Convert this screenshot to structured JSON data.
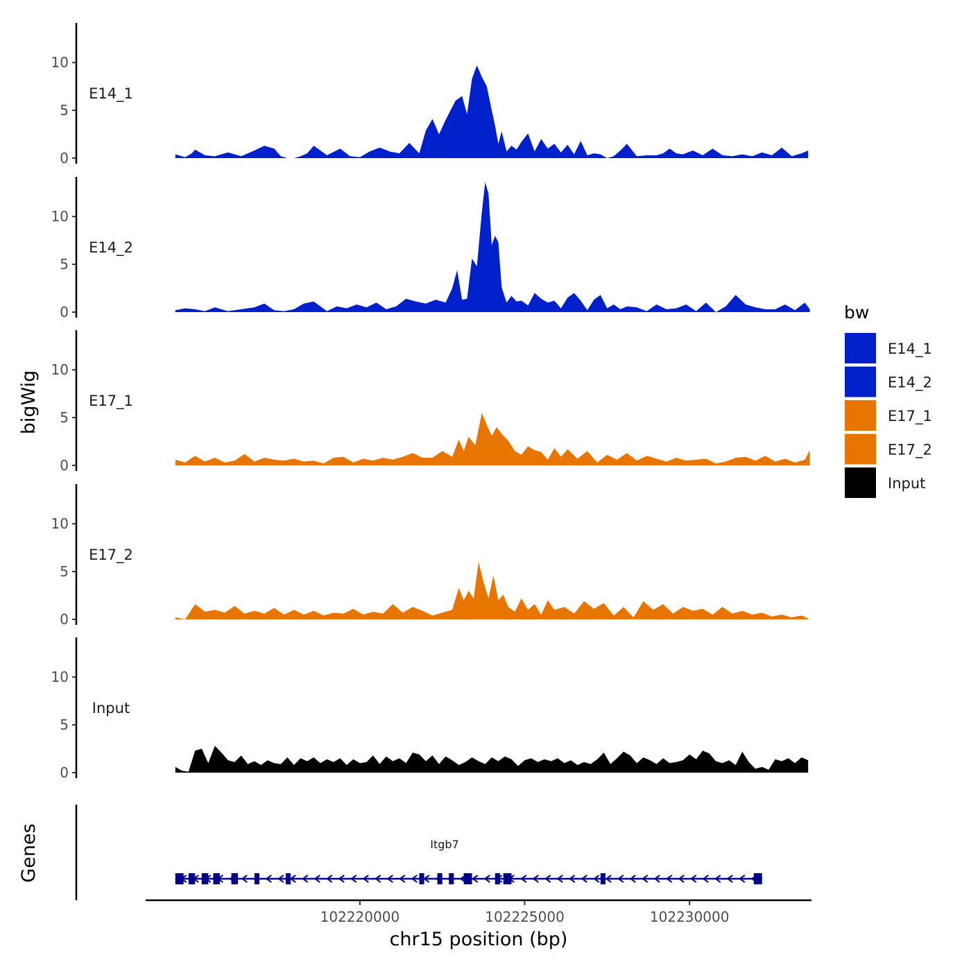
{
  "chart_data": {
    "type": "area",
    "xlabel": "chr15 position (bp)",
    "ylabel": "bigWig",
    "genes_label": "Genes",
    "xlim": [
      102213500,
      102233700
    ],
    "xticks": [
      102220000,
      102225000,
      102230000
    ],
    "xtick_labels": [
      "102220000",
      "102225000",
      "102230000"
    ],
    "ylim": [
      0,
      14
    ],
    "yticks": [
      0,
      5,
      10
    ],
    "ytick_labels": [
      "0",
      "5",
      "10"
    ],
    "legend": {
      "title": "bw",
      "entries": [
        {
          "label": "E14_1",
          "color": "#0020CC"
        },
        {
          "label": "E14_2",
          "color": "#0020CC"
        },
        {
          "label": "E17_1",
          "color": "#E87500"
        },
        {
          "label": "E17_2",
          "color": "#E87500"
        },
        {
          "label": "Input",
          "color": "#000000"
        }
      ]
    },
    "series": [
      {
        "name": "E14_1",
        "color": "#0020CC",
        "x": [
          102214400,
          102214700,
          102214900,
          102215000,
          102215300,
          102215600,
          102216000,
          102216400,
          102216600,
          102216800,
          102217100,
          102217400,
          102217600,
          102217800,
          102218000,
          102218200,
          102218400,
          102218600,
          102219000,
          102219400,
          102219700,
          102220000,
          102220300,
          102220600,
          102220900,
          102221200,
          102221500,
          102221800,
          102222000,
          102222200,
          102222400,
          102222600,
          102222900,
          102223100,
          102223250,
          102223400,
          102223550,
          102223700,
          102223850,
          102224000,
          102224100,
          102224200,
          102224300,
          102224450,
          102224600,
          102224750,
          102224900,
          102225100,
          102225300,
          102225500,
          102225700,
          102225900,
          102226100,
          102226300,
          102226500,
          102226700,
          102226900,
          102227100,
          102227300,
          102227500,
          102227700,
          102227900,
          102228100,
          102228400,
          102228700,
          102229000,
          102229200,
          102229400,
          102229600,
          102229800,
          102230100,
          102230400,
          102230700,
          102231000,
          102231300,
          102231600,
          102231900,
          102232200,
          102232500,
          102232800,
          102233100,
          102233400,
          102233600
        ],
        "y": [
          0.4,
          0.1,
          0.5,
          0.9,
          0.3,
          0.2,
          0.6,
          0.2,
          0.5,
          0.8,
          1.3,
          1.0,
          0.2,
          0.0,
          0.0,
          0.2,
          0.5,
          1.3,
          0.3,
          1.0,
          0.2,
          0.1,
          0.7,
          1.1,
          0.7,
          0.5,
          1.6,
          0.5,
          2.9,
          4.1,
          2.5,
          4.0,
          6.0,
          6.5,
          4.6,
          8.3,
          9.7,
          8.5,
          7.5,
          5.0,
          3.4,
          1.5,
          2.8,
          0.7,
          1.3,
          0.9,
          1.7,
          2.6,
          0.7,
          2.0,
          1.0,
          1.5,
          0.6,
          1.4,
          0.4,
          1.8,
          0.3,
          0.5,
          0.4,
          0.0,
          0.2,
          0.8,
          1.5,
          0.2,
          0.3,
          0.3,
          0.5,
          1.0,
          0.5,
          0.4,
          0.8,
          0.3,
          1.0,
          0.3,
          0.2,
          0.4,
          0.2,
          0.6,
          0.3,
          1.1,
          0.2,
          0.5,
          0.8
        ]
      },
      {
        "name": "E14_2",
        "color": "#0020CC",
        "x": [
          102214400,
          102214700,
          102215000,
          102215300,
          102215600,
          102216000,
          102216400,
          102216800,
          102217100,
          102217400,
          102217700,
          102218000,
          102218300,
          102218600,
          102219000,
          102219300,
          102219600,
          102219900,
          102220200,
          102220500,
          102220800,
          102221100,
          102221400,
          102221700,
          102222000,
          102222300,
          102222600,
          102222800,
          102222950,
          102223100,
          102223250,
          102223400,
          102223550,
          102223700,
          102223800,
          102223900,
          102224000,
          102224100,
          102224200,
          102224300,
          102224450,
          102224600,
          102224750,
          102224900,
          102225100,
          102225300,
          102225500,
          102225700,
          102225900,
          102226100,
          102226300,
          102226500,
          102226700,
          102226900,
          102227100,
          102227300,
          102227500,
          102227700,
          102227900,
          102228100,
          102228400,
          102228700,
          102229000,
          102229300,
          102229600,
          102229900,
          102230200,
          102230500,
          102230800,
          102231100,
          102231400,
          102231700,
          102232000,
          102232300,
          102232600,
          102232900,
          102233200,
          102233500,
          102233650
        ],
        "y": [
          0.2,
          0.4,
          0.3,
          0.1,
          0.5,
          0.1,
          0.3,
          0.5,
          0.9,
          0.2,
          0.1,
          0.3,
          0.9,
          1.1,
          0.1,
          0.6,
          0.4,
          0.8,
          0.5,
          1.0,
          0.3,
          0.6,
          1.4,
          1.1,
          0.9,
          1.3,
          1.0,
          2.5,
          4.4,
          1.3,
          1.4,
          5.6,
          4.8,
          10.5,
          13.6,
          12.4,
          7.0,
          8.0,
          7.3,
          2.6,
          1.0,
          1.7,
          1.1,
          1.2,
          0.7,
          2.0,
          1.4,
          1.0,
          1.2,
          0.4,
          1.5,
          2.0,
          1.2,
          0.2,
          1.3,
          1.8,
          0.4,
          0.8,
          0.3,
          0.6,
          0.5,
          0.1,
          0.8,
          0.3,
          0.4,
          0.8,
          0.1,
          1.0,
          0.0,
          0.6,
          1.8,
          0.8,
          0.5,
          0.3,
          0.3,
          0.8,
          0.2,
          1.0,
          0.3
        ]
      },
      {
        "name": "E17_1",
        "color": "#E87500",
        "x": [
          102214400,
          102214700,
          102215000,
          102215300,
          102215600,
          102215900,
          102216200,
          102216500,
          102216800,
          102217100,
          102217400,
          102217700,
          102218000,
          102218300,
          102218600,
          102218900,
          102219200,
          102219500,
          102219800,
          102220100,
          102220400,
          102220700,
          102221000,
          102221300,
          102221600,
          102221900,
          102222200,
          102222500,
          102222800,
          102223000,
          102223150,
          102223300,
          102223500,
          102223700,
          102223850,
          102224000,
          102224150,
          102224300,
          102224500,
          102224700,
          102224900,
          102225100,
          102225300,
          102225500,
          102225700,
          102225900,
          102226100,
          102226300,
          102226600,
          102226900,
          102227200,
          102227500,
          102227800,
          102228100,
          102228400,
          102228700,
          102229000,
          102229300,
          102229600,
          102229900,
          102230200,
          102230500,
          102230800,
          102231100,
          102231400,
          102231700,
          102232000,
          102232300,
          102232600,
          102232900,
          102233200,
          102233500,
          102233650
        ],
        "y": [
          0.6,
          0.3,
          1.0,
          0.4,
          0.8,
          0.3,
          0.5,
          1.2,
          0.4,
          0.8,
          0.6,
          0.5,
          0.7,
          0.4,
          0.5,
          0.2,
          0.8,
          0.9,
          0.3,
          0.7,
          0.5,
          0.8,
          0.6,
          0.9,
          1.3,
          0.8,
          0.8,
          1.5,
          0.9,
          2.7,
          1.5,
          3.0,
          2.1,
          5.5,
          4.2,
          3.1,
          4.0,
          3.3,
          2.6,
          1.5,
          1.1,
          2.0,
          1.6,
          1.4,
          0.6,
          1.8,
          0.9,
          1.7,
          0.7,
          1.5,
          0.3,
          1.1,
          0.6,
          1.3,
          0.5,
          1.0,
          0.7,
          0.4,
          0.8,
          0.5,
          0.6,
          0.7,
          0.2,
          0.4,
          0.8,
          0.9,
          0.5,
          1.0,
          0.4,
          0.7,
          0.3,
          0.6,
          1.6
        ]
      },
      {
        "name": "E17_2",
        "color": "#E87500",
        "x": [
          102214400,
          102214700,
          102215000,
          102215300,
          102215600,
          102215900,
          102216200,
          102216500,
          102216800,
          102217100,
          102217400,
          102217700,
          102218000,
          102218300,
          102218600,
          102218900,
          102219200,
          102219500,
          102219800,
          102220100,
          102220400,
          102220700,
          102221000,
          102221300,
          102221600,
          102221900,
          102222200,
          102222500,
          102222800,
          102223000,
          102223150,
          102223300,
          102223450,
          102223600,
          102223750,
          102223900,
          102224050,
          102224200,
          102224350,
          102224500,
          102224700,
          102224900,
          102225100,
          102225300,
          102225500,
          102225700,
          102225900,
          102226200,
          102226500,
          102226800,
          102227100,
          102227400,
          102227700,
          102228000,
          102228300,
          102228600,
          102228900,
          102229200,
          102229500,
          102229800,
          102230100,
          102230400,
          102230700,
          102231000,
          102231300,
          102231600,
          102231900,
          102232200,
          102232500,
          102232800,
          102233100,
          102233400,
          102233600
        ],
        "y": [
          0.2,
          0.0,
          1.6,
          0.8,
          1.0,
          0.7,
          1.4,
          0.6,
          0.9,
          0.6,
          1.2,
          0.5,
          1.0,
          0.5,
          0.9,
          0.4,
          0.7,
          0.6,
          1.1,
          0.5,
          0.8,
          0.6,
          1.6,
          0.7,
          1.3,
          0.9,
          0.4,
          0.7,
          1.0,
          3.3,
          2.0,
          3.0,
          2.2,
          6.0,
          3.9,
          2.2,
          4.6,
          2.0,
          2.6,
          1.3,
          0.8,
          2.2,
          1.0,
          1.6,
          0.5,
          2.0,
          1.0,
          1.3,
          0.6,
          1.9,
          1.1,
          1.7,
          0.4,
          1.3,
          0.2,
          1.9,
          1.0,
          1.6,
          0.6,
          1.3,
          0.9,
          1.1,
          0.5,
          1.3,
          0.6,
          0.9,
          0.5,
          0.7,
          0.3,
          0.5,
          0.2,
          0.4,
          0.1
        ]
      },
      {
        "name": "Input",
        "color": "#000000",
        "x": [
          102214400,
          102214600,
          102214800,
          102215000,
          102215200,
          102215400,
          102215600,
          102215800,
          102216000,
          102216200,
          102216400,
          102216600,
          102216800,
          102217000,
          102217200,
          102217400,
          102217600,
          102217800,
          102218000,
          102218200,
          102218400,
          102218600,
          102218800,
          102219000,
          102219200,
          102219400,
          102219600,
          102219800,
          102220000,
          102220200,
          102220400,
          102220600,
          102220800,
          102221000,
          102221200,
          102221400,
          102221600,
          102221800,
          102222000,
          102222200,
          102222400,
          102222600,
          102222800,
          102223000,
          102223200,
          102223400,
          102223600,
          102223800,
          102224000,
          102224200,
          102224400,
          102224600,
          102224800,
          102225000,
          102225200,
          102225400,
          102225600,
          102225800,
          102226000,
          102226200,
          102226400,
          102226600,
          102226800,
          102227000,
          102227200,
          102227400,
          102227600,
          102227800,
          102228000,
          102228200,
          102228400,
          102228600,
          102228800,
          102229000,
          102229200,
          102229400,
          102229600,
          102229800,
          102230000,
          102230200,
          102230400,
          102230600,
          102230800,
          102231000,
          102231200,
          102231400,
          102231600,
          102231800,
          102232000,
          102232200,
          102232400,
          102232600,
          102232800,
          102233000,
          102233200,
          102233400,
          102233600
        ],
        "y": [
          0.6,
          0.2,
          0.1,
          2.3,
          2.5,
          1.0,
          2.8,
          2.1,
          1.3,
          1.1,
          1.8,
          0.9,
          1.2,
          0.8,
          1.3,
          1.0,
          0.9,
          1.6,
          0.8,
          1.5,
          1.2,
          1.6,
          1.0,
          1.4,
          1.1,
          1.5,
          0.8,
          1.4,
          1.0,
          1.1,
          1.8,
          0.9,
          1.7,
          1.2,
          1.5,
          1.0,
          2.1,
          1.9,
          1.2,
          1.8,
          0.9,
          1.7,
          1.3,
          0.8,
          1.1,
          1.6,
          1.2,
          0.9,
          1.6,
          1.2,
          1.7,
          1.4,
          0.7,
          1.3,
          1.5,
          1.1,
          1.4,
          1.2,
          1.5,
          1.0,
          1.3,
          0.8,
          1.1,
          0.9,
          1.4,
          2.1,
          0.9,
          1.5,
          2.2,
          1.8,
          1.0,
          1.6,
          1.3,
          0.9,
          1.5,
          1.0,
          1.1,
          1.3,
          1.9,
          1.4,
          2.3,
          2.0,
          1.2,
          1.0,
          1.3,
          0.8,
          2.2,
          1.1,
          0.4,
          0.6,
          0.3,
          1.4,
          1.2,
          1.5,
          1.0,
          1.6,
          1.3
        ]
      }
    ],
    "gene": {
      "name": "Itgb7",
      "strand": "-",
      "start": 102214400,
      "end": 102232200,
      "exons": [
        [
          102214400,
          102214650
        ],
        [
          102214800,
          102215000
        ],
        [
          102215200,
          102215400
        ],
        [
          102215550,
          102215750
        ],
        [
          102216100,
          102216300
        ],
        [
          102216800,
          102216950
        ],
        [
          102217750,
          102217900
        ],
        [
          102221800,
          102221950
        ],
        [
          102222350,
          102222500
        ],
        [
          102222700,
          102222850
        ],
        [
          102223150,
          102223400
        ],
        [
          102224100,
          102224250
        ],
        [
          102224350,
          102224600
        ],
        [
          102227300,
          102227450
        ],
        [
          102231950,
          102232050
        ],
        [
          102232050,
          102232200
        ]
      ]
    }
  }
}
